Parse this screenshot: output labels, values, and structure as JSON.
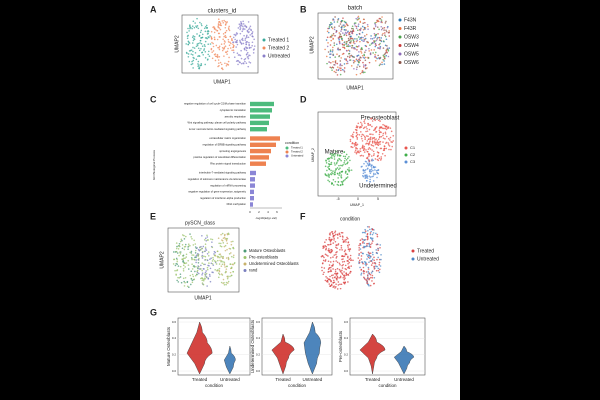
{
  "panels": {
    "a": {
      "label": "A",
      "title": "clusters_id",
      "xlabel": "UMAP1",
      "ylabel": "UMAP2",
      "legend": [
        "Treated 1",
        "Treated 2",
        "Untreated"
      ]
    },
    "b": {
      "label": "B",
      "title": "batch",
      "xlabel": "UMAP1",
      "ylabel": "UMAP2",
      "legend": [
        "F43N",
        "F43R",
        "OSW3",
        "OSW4",
        "OSW5",
        "OSW6"
      ]
    },
    "c": {
      "label": "C",
      "ylabel": "GO Biological Process",
      "xlabel": "-log10(adj.p.val)",
      "xticks": [
        "0",
        "2",
        "4",
        "6"
      ],
      "legend_title": "condition",
      "legend": [
        "Treated 1",
        "Treated 2",
        "Untreated"
      ],
      "terms": [
        "negative regulation of cell cycle G2/M phase transition",
        "cytoplasmic translation",
        "aerobic respiration",
        "Wnt signaling pathway, planar cell polarity pathway",
        "tumor necrosis factor-mediated signaling pathway",
        "extracellular matrix organization",
        "regulation of ERBB signaling pathway",
        "sprouting angiogenesis",
        "positive regulation of osteoblast differentiation",
        "Rho protein signal transduction",
        "interleukin-7-mediated signaling pathway",
        "regulation of telomere maintenance via telomerase",
        "regulation of mRNA processing",
        "negative regulation of gene expression, epigenetic",
        "regulation of interferon-alpha production",
        "DNA methylation"
      ]
    },
    "d": {
      "label": "D",
      "xlabel": "UMAP_1",
      "ylabel": "UMAP_2",
      "xticks": [
        "-5",
        "0",
        "5"
      ],
      "annotations": [
        "Pre-osteoblast",
        "Mature",
        "Undetermined"
      ],
      "legend": [
        "C1",
        "C2",
        "C3"
      ]
    },
    "e": {
      "label": "E",
      "title": "pySCN_class",
      "xlabel": "UMAP1",
      "ylabel": "UMAP2",
      "legend": [
        "Mature Osteoblasts",
        "Pre-osteoblasts",
        "Undetermined Osteoblasts",
        "rand"
      ]
    },
    "f": {
      "label": "F",
      "title": "condition",
      "legend": [
        "Treated",
        "Untreated"
      ]
    },
    "g": {
      "label": "G",
      "xlabel": "condition",
      "groups": [
        "Treated",
        "Untreated"
      ],
      "plots": [
        {
          "ylabel": "Mature Osteoblasts",
          "yticks": [
            "0.0",
            "0.2",
            "0.4",
            "0.6"
          ]
        },
        {
          "ylabel": "Undetermined Osteoblasts",
          "yticks": [
            "0.0",
            "0.2",
            "0.4",
            "0.6"
          ]
        },
        {
          "ylabel": "Pre-osteoblasts",
          "yticks": [
            "0.0",
            "0.2",
            "0.4",
            "0.6"
          ]
        }
      ]
    }
  }
}
